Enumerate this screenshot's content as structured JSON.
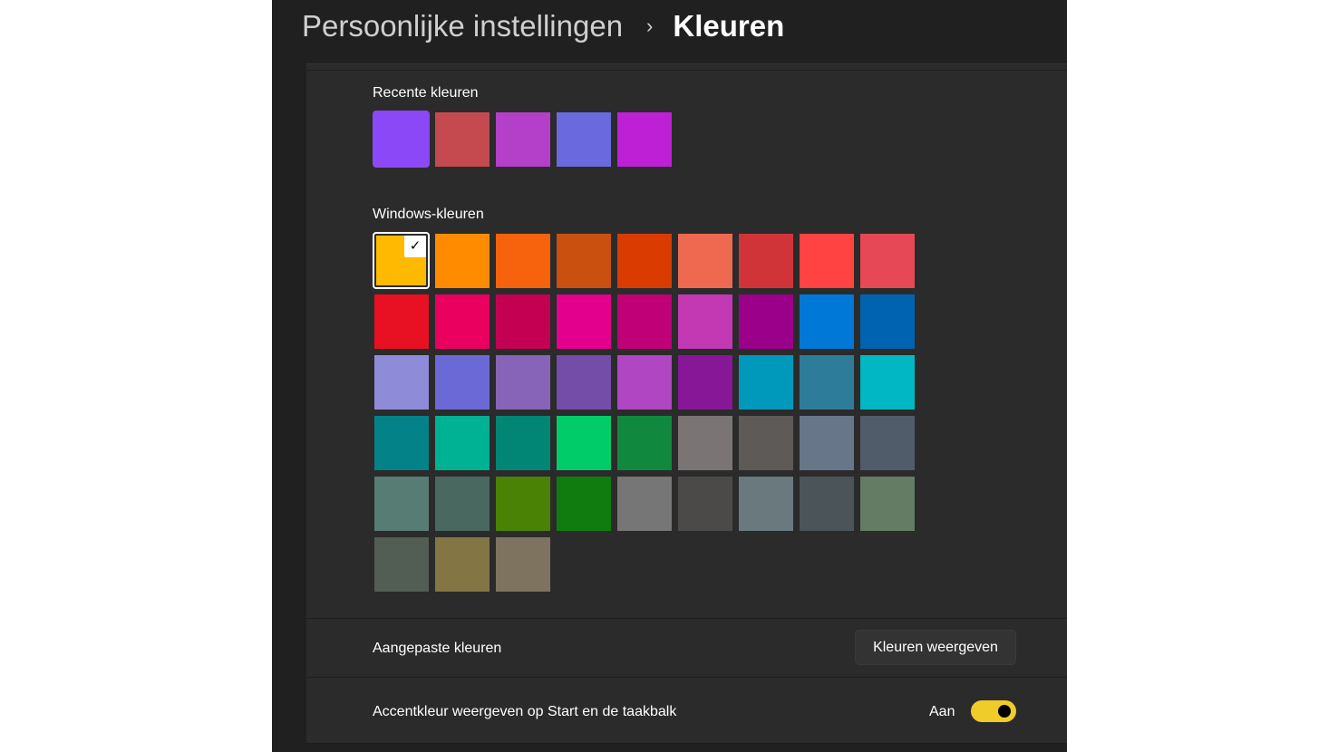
{
  "header": {
    "parent": "Persoonlijke instellingen",
    "separator": "›",
    "current": "Kleuren"
  },
  "recent": {
    "label": "Recente kleuren",
    "colors": [
      "#8a48f6",
      "#c44a50",
      "#b43fc8",
      "#6a6ade",
      "#be20d6"
    ]
  },
  "windows": {
    "label": "Windows-kleuren",
    "selected_index": 0,
    "colors": [
      "#FFB900",
      "#FF8C00",
      "#F7630C",
      "#CA5010",
      "#DA3B01",
      "#EF6950",
      "#D13438",
      "#FF4343",
      "#E74856",
      "#E81123",
      "#EA005E",
      "#C30052",
      "#E3008C",
      "#BF0077",
      "#C239B3",
      "#9A0089",
      "#0078D7",
      "#0063B1",
      "#8E8CD8",
      "#6B69D6",
      "#8764B8",
      "#744DA9",
      "#B146C2",
      "#881798",
      "#0099BC",
      "#2D7D9A",
      "#00B7C3",
      "#038387",
      "#00B294",
      "#018574",
      "#00CC6A",
      "#10893E",
      "#7A7574",
      "#5D5A58",
      "#68768A",
      "#515C6B",
      "#567C73",
      "#486860",
      "#498205",
      "#107C10",
      "#767676",
      "#4C4A48",
      "#69797E",
      "#4A5459",
      "#647C64",
      "#525E54",
      "#847545",
      "#7E735F"
    ]
  },
  "custom": {
    "label": "Aangepaste kleuren",
    "button": "Kleuren weergeven"
  },
  "accent_start": {
    "label": "Accentkleur weergeven op Start en de taakbalk",
    "state": "Aan",
    "on": true,
    "toggle_color": "#f0cc2a"
  }
}
